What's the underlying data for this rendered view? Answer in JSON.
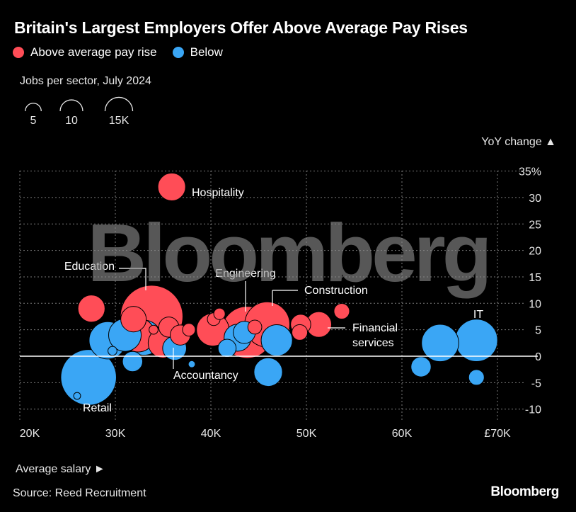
{
  "title": "Britain's Largest Employers Offer Above Average Pay Rises",
  "legend": [
    {
      "label": "Above average pay rise",
      "color": "#ff4d57"
    },
    {
      "label": "Below",
      "color": "#3aa6f5"
    }
  ],
  "size_legend": {
    "title": "Jobs per sector, July 2024",
    "items": [
      "5",
      "10",
      "15K"
    ],
    "values": [
      5,
      10,
      15
    ]
  },
  "source": "Source: Reed Recruitment",
  "brand": "Bloomberg",
  "watermark": "Bloomberg",
  "chart_data": {
    "type": "scatter",
    "title": "Britain's Largest Employers Offer Above Average Pay Rises",
    "xlabel": "Average salary ►",
    "ylabel": "YoY change ▲",
    "xlim": [
      20,
      75
    ],
    "ylim": [
      -12,
      35
    ],
    "x_ticks": [
      "20K",
      "30K",
      "40K",
      "50K",
      "60K",
      "£70K"
    ],
    "x_tick_values": [
      20,
      30,
      40,
      50,
      60,
      70
    ],
    "y_ticks": [
      "35%",
      "30",
      "25",
      "20",
      "15",
      "10",
      "5",
      "0",
      "-5",
      "-10"
    ],
    "y_tick_values": [
      35,
      30,
      25,
      20,
      15,
      10,
      5,
      0,
      -5,
      -10
    ],
    "grid": true,
    "colors": {
      "above": "#ff4d57",
      "below": "#3aa6f5"
    },
    "points": [
      {
        "x": 35.9,
        "y": 32.0,
        "size": 4.7,
        "group": "above",
        "label": "Hospitality"
      },
      {
        "x": 33.8,
        "y": 7.5,
        "size": 24.0,
        "group": "above",
        "label": "Education"
      },
      {
        "x": 27.5,
        "y": 9.0,
        "size": 4.5,
        "group": "above"
      },
      {
        "x": 31.9,
        "y": 7.0,
        "size": 4.0,
        "group": "above"
      },
      {
        "x": 32.4,
        "y": 4.0,
        "size": 7.0,
        "group": "above"
      },
      {
        "x": 35.6,
        "y": 5.5,
        "size": 2.5,
        "group": "above"
      },
      {
        "x": 35.0,
        "y": 2.5,
        "size": 5.5,
        "group": "above"
      },
      {
        "x": 36.8,
        "y": 4.0,
        "size": 2.5,
        "group": "above"
      },
      {
        "x": 37.7,
        "y": 5.0,
        "size": 1.0,
        "group": "above"
      },
      {
        "x": 34.0,
        "y": 5.0,
        "size": 0.5,
        "group": "above"
      },
      {
        "x": 40.2,
        "y": 5.0,
        "size": 6.5,
        "group": "above"
      },
      {
        "x": 40.3,
        "y": 7.0,
        "size": 1.0,
        "group": "above"
      },
      {
        "x": 40.9,
        "y": 8.0,
        "size": 0.8,
        "group": "above"
      },
      {
        "x": 43.8,
        "y": 4.5,
        "size": 16.5,
        "group": "above",
        "label": "Engineering"
      },
      {
        "x": 44.6,
        "y": 5.5,
        "size": 1.2,
        "group": "above"
      },
      {
        "x": 45.9,
        "y": 6.0,
        "size": 12.5,
        "group": "above",
        "label": "Construction"
      },
      {
        "x": 49.4,
        "y": 6.0,
        "size": 2.5,
        "group": "above"
      },
      {
        "x": 49.3,
        "y": 4.5,
        "size": 1.5,
        "group": "above"
      },
      {
        "x": 51.3,
        "y": 6.0,
        "size": 4.0,
        "group": "above",
        "label": "Financial services"
      },
      {
        "x": 53.7,
        "y": 8.5,
        "size": 1.5,
        "group": "above"
      },
      {
        "x": 29.2,
        "y": 3.0,
        "size": 8.5,
        "group": "below"
      },
      {
        "x": 31.0,
        "y": 4.0,
        "size": 6.5,
        "group": "below"
      },
      {
        "x": 33.0,
        "y": 3.5,
        "size": 7.5,
        "group": "below"
      },
      {
        "x": 29.7,
        "y": 1.0,
        "size": 0.5,
        "group": "below"
      },
      {
        "x": 36.2,
        "y": 1.5,
        "size": 3.5,
        "group": "below",
        "label": "Accountancy"
      },
      {
        "x": 31.8,
        "y": -1.0,
        "size": 2.5,
        "group": "below"
      },
      {
        "x": 38.0,
        "y": -1.5,
        "size": 0.3,
        "group": "below"
      },
      {
        "x": 41.7,
        "y": 1.5,
        "size": 2.0,
        "group": "below"
      },
      {
        "x": 42.8,
        "y": 3.5,
        "size": 4.5,
        "group": "below"
      },
      {
        "x": 43.5,
        "y": 4.5,
        "size": 3.0,
        "group": "below"
      },
      {
        "x": 46.9,
        "y": 3.0,
        "size": 6.0,
        "group": "below"
      },
      {
        "x": 46.0,
        "y": -3.0,
        "size": 5.0,
        "group": "below"
      },
      {
        "x": 27.2,
        "y": -4.0,
        "size": 19.0,
        "group": "below",
        "label": "Retail"
      },
      {
        "x": 26.0,
        "y": -7.5,
        "size": 0.3,
        "group": "below"
      },
      {
        "x": 62.0,
        "y": -2.0,
        "size": 2.5,
        "group": "below"
      },
      {
        "x": 64.0,
        "y": 2.5,
        "size": 8.5,
        "group": "below"
      },
      {
        "x": 67.8,
        "y": 3.0,
        "size": 11.0,
        "group": "below",
        "label": "IT"
      },
      {
        "x": 67.8,
        "y": -4.0,
        "size": 1.5,
        "group": "below"
      }
    ],
    "annotations": [
      {
        "text": "Hospitality",
        "for": "Hospitality"
      },
      {
        "text": "Education",
        "for": "Education"
      },
      {
        "text": "Engineering",
        "for": "Engineering"
      },
      {
        "text": "Construction",
        "for": "Construction"
      },
      {
        "text": "Financial",
        "for": "Financial services"
      },
      {
        "text": "services",
        "for": "Financial services"
      },
      {
        "text": "IT",
        "for": "IT"
      },
      {
        "text": "Accountancy",
        "for": "Accountancy"
      },
      {
        "text": "Retail",
        "for": "Retail"
      }
    ]
  }
}
